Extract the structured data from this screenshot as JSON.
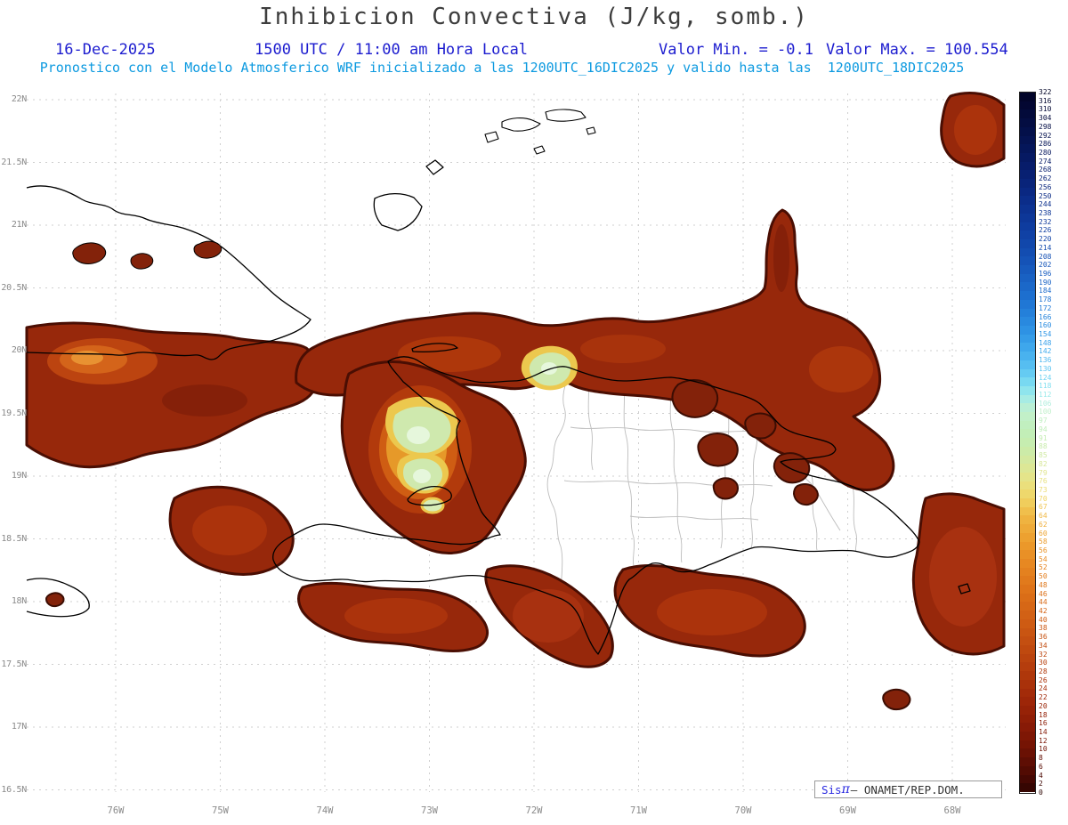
{
  "title": "Inhibicion Convectiva (J/kg, somb.)",
  "header": {
    "date": "16-Dec-2025",
    "time_line": "1500 UTC / 11:00 am Hora Local",
    "min_label": "Valor Min. = -0.1",
    "max_label": "Valor Max. = 100.554",
    "forecast_line": "Pronostico con el Modelo Atmosferico WRF inicializado a las 1200UTC_16DIC2025 y valido hasta las  1200UTC_18DIC2025"
  },
  "credit": {
    "brand": "Sis",
    "pi": "π",
    "dash": "– ",
    "org": "ONAMET/REP.DOM."
  },
  "colors": {
    "header_blue": "#1c1ccf",
    "header_cyan": "#0d9ae0",
    "title_gray": "#3d3d3d",
    "axis_gray": "#8a8a8a",
    "grid_gray": "#cfcfcf",
    "coastline": "#000000",
    "admin_boundary": "#bdbdbd",
    "cin_main": "#97280b",
    "cin_edge": "#4a0e03",
    "cin_orange": "#cf5d13",
    "cin_yellow": "#ecc84e",
    "cin_green": "#cfe9ae"
  },
  "chart_data": {
    "type": "heatmap",
    "title": "Inhibicion Convectiva (J/kg, somb.)",
    "units": "J/kg",
    "datetime": "16-Dec-2025 1500 UTC / 11:00 am Hora Local",
    "value_min": -0.1,
    "value_max": 100.554,
    "model_line": "Pronostico con el Modelo Atmosferico WRF inicializado a las 1200UTC_16DIC2025 y valido hasta las 1200UTC_18DIC2025",
    "xlabel": "",
    "ylabel": "",
    "x_ticks": [
      "76W",
      "75W",
      "74W",
      "73W",
      "72W",
      "71W",
      "70W",
      "69W",
      "68W"
    ],
    "y_ticks": [
      "22N",
      "21.5N",
      "21N",
      "20.5N",
      "20N",
      "19.5N",
      "19N",
      "18.5N",
      "18N",
      "17.5N",
      "17N",
      "16.5N"
    ],
    "legend_position": "right",
    "grid": true,
    "colorbar": {
      "ticks": [
        322,
        316,
        310,
        304,
        298,
        292,
        286,
        280,
        274,
        268,
        262,
        256,
        250,
        244,
        238,
        232,
        226,
        220,
        214,
        208,
        202,
        196,
        190,
        184,
        178,
        172,
        166,
        160,
        154,
        148,
        142,
        136,
        130,
        124,
        118,
        112,
        106,
        100,
        97,
        94,
        91,
        88,
        85,
        82,
        79,
        76,
        73,
        70,
        67,
        64,
        62,
        60,
        58,
        56,
        54,
        52,
        50,
        48,
        46,
        44,
        42,
        40,
        38,
        36,
        34,
        32,
        30,
        28,
        26,
        24,
        22,
        20,
        18,
        16,
        14,
        12,
        10,
        8,
        6,
        4,
        2,
        0
      ],
      "stops": [
        {
          "v": 0,
          "c": "#2e0502"
        },
        {
          "v": 4,
          "c": "#4c0903"
        },
        {
          "v": 10,
          "c": "#701204"
        },
        {
          "v": 16,
          "c": "#8c1c06"
        },
        {
          "v": 22,
          "c": "#a02808"
        },
        {
          "v": 28,
          "c": "#b23a0c"
        },
        {
          "v": 34,
          "c": "#c24c10"
        },
        {
          "v": 40,
          "c": "#d05e14"
        },
        {
          "v": 46,
          "c": "#dc7018"
        },
        {
          "v": 52,
          "c": "#e68420"
        },
        {
          "v": 58,
          "c": "#ec9c2c"
        },
        {
          "v": 64,
          "c": "#f0b844"
        },
        {
          "v": 70,
          "c": "#f0d464"
        },
        {
          "v": 76,
          "c": "#e8e284"
        },
        {
          "v": 82,
          "c": "#d8e89c"
        },
        {
          "v": 88,
          "c": "#c8ecac"
        },
        {
          "v": 94,
          "c": "#c0eeba"
        },
        {
          "v": 100,
          "c": "#c2f0cc"
        },
        {
          "v": 106,
          "c": "#b2eedd"
        },
        {
          "v": 112,
          "c": "#9ceaea"
        },
        {
          "v": 118,
          "c": "#82dff0"
        },
        {
          "v": 124,
          "c": "#6ed2f2"
        },
        {
          "v": 130,
          "c": "#5cc4f2"
        },
        {
          "v": 142,
          "c": "#42acee"
        },
        {
          "v": 154,
          "c": "#3096e6"
        },
        {
          "v": 166,
          "c": "#2684dc"
        },
        {
          "v": 178,
          "c": "#1e72d2"
        },
        {
          "v": 190,
          "c": "#1a64c6"
        },
        {
          "v": 202,
          "c": "#1656ba"
        },
        {
          "v": 214,
          "c": "#124aae"
        },
        {
          "v": 226,
          "c": "#0f3ea2"
        },
        {
          "v": 238,
          "c": "#0c3494"
        },
        {
          "v": 250,
          "c": "#0a2a86"
        },
        {
          "v": 262,
          "c": "#082276"
        },
        {
          "v": 274,
          "c": "#061a66"
        },
        {
          "v": 286,
          "c": "#051456"
        },
        {
          "v": 298,
          "c": "#040e46"
        },
        {
          "v": 310,
          "c": "#030836"
        },
        {
          "v": 322,
          "c": "#020426"
        }
      ]
    }
  }
}
